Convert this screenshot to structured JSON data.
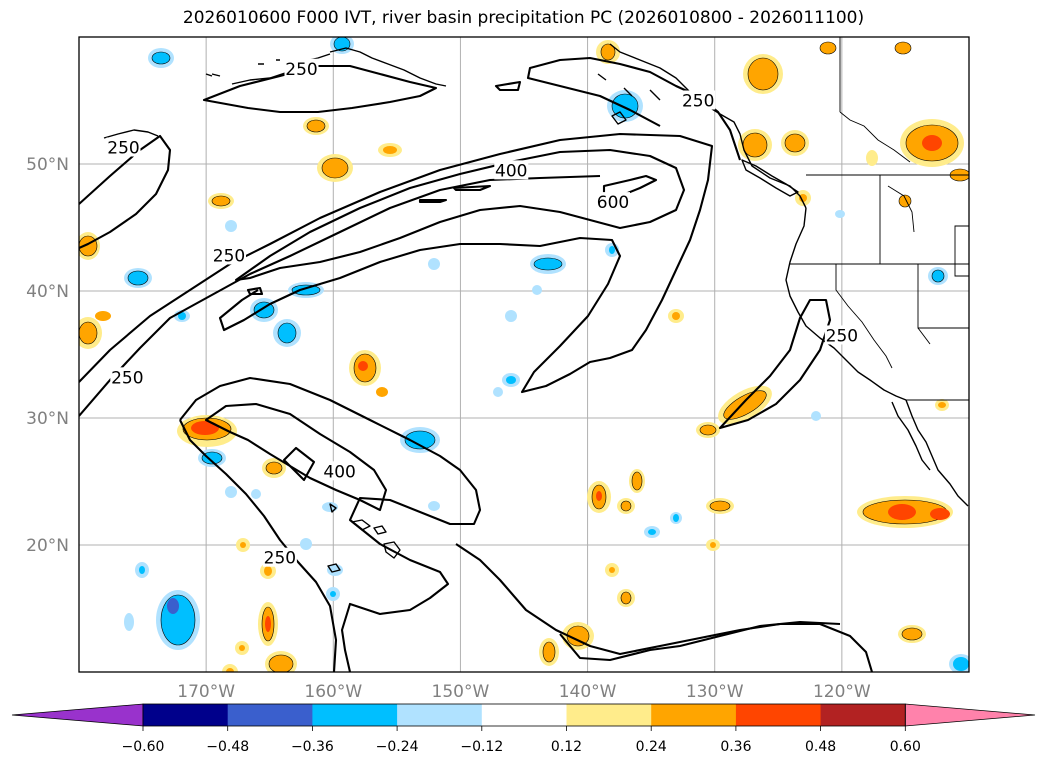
{
  "title": "2026010600 F000 IVT, river basin precipitation PC (2026010800 - 2026011100)",
  "map": {
    "lat_labels": [
      {
        "text": "50°N",
        "lat": 50
      },
      {
        "text": "40°N",
        "lat": 40
      },
      {
        "text": "30°N",
        "lat": 30
      },
      {
        "text": "20°N",
        "lat": 20
      }
    ],
    "lon_labels": [
      {
        "text": "170°W",
        "lon": -170
      },
      {
        "text": "160°W",
        "lon": -160
      },
      {
        "text": "150°W",
        "lon": -150
      },
      {
        "text": "140°W",
        "lon": -140
      },
      {
        "text": "130°W",
        "lon": -130
      },
      {
        "text": "120°W",
        "lon": -120
      }
    ],
    "ivt_contour_labels": [
      {
        "text": "250",
        "lat": 57.5,
        "lon": -162.5
      },
      {
        "text": "250",
        "lat": 51.3,
        "lon": -176.5
      },
      {
        "text": "250",
        "lat": 42.8,
        "lon": -168.2
      },
      {
        "text": "250",
        "lat": 33.2,
        "lon": -176.2
      },
      {
        "text": "250",
        "lat": 55.0,
        "lon": -131.3
      },
      {
        "text": "250",
        "lat": 36.5,
        "lon": -120.0
      },
      {
        "text": "250",
        "lat": 19.0,
        "lon": -164.2
      },
      {
        "text": "400",
        "lat": 49.5,
        "lon": -146.0
      },
      {
        "text": "400",
        "lat": 25.8,
        "lon": -159.5
      },
      {
        "text": "600",
        "lat": 47.0,
        "lon": -138.0
      }
    ]
  },
  "colorbar": {
    "labels": [
      "−0.60",
      "−0.48",
      "−0.36",
      "−0.24",
      "−0.12",
      "0.12",
      "0.24",
      "0.36",
      "0.48",
      "0.60"
    ],
    "colors": [
      "#9932cc",
      "#00008b",
      "#3a5fcd",
      "#00bfff",
      "#b0e2ff",
      "#ffffff",
      "#ffec8b",
      "#ffa500",
      "#ff4500",
      "#b22222",
      "#ff82ab"
    ]
  }
}
